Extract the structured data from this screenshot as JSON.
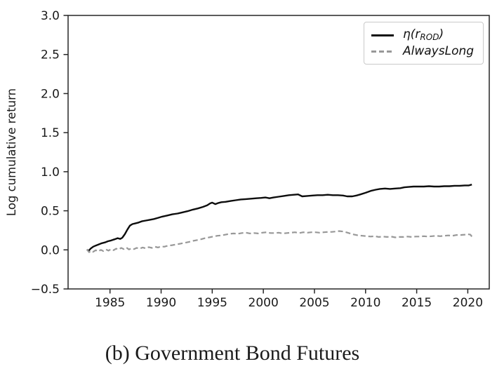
{
  "figure": {
    "caption": "(b) Government Bond Futures"
  },
  "legend": {
    "entries": [
      {
        "prefix": "η(r",
        "sub": "ROD",
        "suffix": ")"
      },
      {
        "label": "AlwaysLong"
      }
    ]
  },
  "chart_data": {
    "type": "line",
    "title": "",
    "xlabel": "",
    "ylabel": "Log cumulative return",
    "xlim": [
      1980.9,
      2022.1
    ],
    "ylim": [
      -0.5,
      3.0
    ],
    "grid": false,
    "legend_position": "upper right",
    "axis_color": "#262626",
    "tick_label_color": "#1a1a1a",
    "x_ticks": [
      {
        "value": 1985,
        "label": "1985"
      },
      {
        "value": 1990,
        "label": "1990"
      },
      {
        "value": 1995,
        "label": "1995"
      },
      {
        "value": 2000,
        "label": "2000"
      },
      {
        "value": 2005,
        "label": "2005"
      },
      {
        "value": 2010,
        "label": "2010"
      },
      {
        "value": 2015,
        "label": "2015"
      },
      {
        "value": 2020,
        "label": "2020"
      }
    ],
    "y_ticks": [
      {
        "value": -0.5,
        "label": "−0.5"
      },
      {
        "value": 0.0,
        "label": "0.0"
      },
      {
        "value": 0.5,
        "label": "0.5"
      },
      {
        "value": 1.0,
        "label": "1.0"
      },
      {
        "value": 1.5,
        "label": "1.5"
      },
      {
        "value": 2.0,
        "label": "2.0"
      },
      {
        "value": 2.5,
        "label": "2.5"
      },
      {
        "value": 3.0,
        "label": "3.0"
      }
    ],
    "series": [
      {
        "name": "η(r_ROD)",
        "color": "#0d0d0d",
        "style": "solid",
        "line_width": 2.4,
        "points": [
          [
            1982.75,
            0.005
          ],
          [
            1982.9,
            -0.015
          ],
          [
            1983.1,
            0.015
          ],
          [
            1983.35,
            0.04
          ],
          [
            1983.6,
            0.055
          ],
          [
            1983.9,
            0.07
          ],
          [
            1984.2,
            0.085
          ],
          [
            1984.5,
            0.095
          ],
          [
            1984.8,
            0.11
          ],
          [
            1985.1,
            0.12
          ],
          [
            1985.45,
            0.135
          ],
          [
            1985.75,
            0.15
          ],
          [
            1986.0,
            0.14
          ],
          [
            1986.2,
            0.155
          ],
          [
            1986.45,
            0.2
          ],
          [
            1986.7,
            0.26
          ],
          [
            1986.95,
            0.31
          ],
          [
            1987.2,
            0.33
          ],
          [
            1987.5,
            0.34
          ],
          [
            1987.8,
            0.35
          ],
          [
            1988.1,
            0.365
          ],
          [
            1988.5,
            0.375
          ],
          [
            1988.9,
            0.385
          ],
          [
            1989.3,
            0.395
          ],
          [
            1989.7,
            0.41
          ],
          [
            1990.1,
            0.425
          ],
          [
            1990.6,
            0.44
          ],
          [
            1991.1,
            0.455
          ],
          [
            1991.6,
            0.465
          ],
          [
            1992.1,
            0.48
          ],
          [
            1992.6,
            0.495
          ],
          [
            1993.1,
            0.515
          ],
          [
            1993.6,
            0.53
          ],
          [
            1994.1,
            0.55
          ],
          [
            1994.5,
            0.57
          ],
          [
            1994.8,
            0.595
          ],
          [
            1995.0,
            0.605
          ],
          [
            1995.3,
            0.585
          ],
          [
            1995.6,
            0.6
          ],
          [
            1995.9,
            0.61
          ],
          [
            1996.3,
            0.615
          ],
          [
            1996.8,
            0.625
          ],
          [
            1997.3,
            0.635
          ],
          [
            1997.8,
            0.645
          ],
          [
            1998.3,
            0.65
          ],
          [
            1998.8,
            0.655
          ],
          [
            1999.3,
            0.66
          ],
          [
            1999.8,
            0.665
          ],
          [
            2000.2,
            0.67
          ],
          [
            2000.6,
            0.66
          ],
          [
            2001.0,
            0.67
          ],
          [
            2001.5,
            0.68
          ],
          [
            2002.0,
            0.69
          ],
          [
            2002.5,
            0.7
          ],
          [
            2003.0,
            0.705
          ],
          [
            2003.4,
            0.71
          ],
          [
            2003.8,
            0.685
          ],
          [
            2004.3,
            0.69
          ],
          [
            2004.8,
            0.695
          ],
          [
            2005.3,
            0.7
          ],
          [
            2005.8,
            0.7
          ],
          [
            2006.3,
            0.705
          ],
          [
            2006.8,
            0.7
          ],
          [
            2007.3,
            0.7
          ],
          [
            2007.8,
            0.695
          ],
          [
            2008.2,
            0.685
          ],
          [
            2008.7,
            0.685
          ],
          [
            2009.1,
            0.695
          ],
          [
            2009.5,
            0.71
          ],
          [
            2010.0,
            0.73
          ],
          [
            2010.5,
            0.755
          ],
          [
            2011.0,
            0.77
          ],
          [
            2011.4,
            0.78
          ],
          [
            2011.9,
            0.785
          ],
          [
            2012.4,
            0.78
          ],
          [
            2012.9,
            0.785
          ],
          [
            2013.4,
            0.79
          ],
          [
            2013.8,
            0.8
          ],
          [
            2014.2,
            0.805
          ],
          [
            2014.7,
            0.81
          ],
          [
            2015.2,
            0.81
          ],
          [
            2015.7,
            0.81
          ],
          [
            2016.2,
            0.815
          ],
          [
            2016.7,
            0.81
          ],
          [
            2017.2,
            0.81
          ],
          [
            2017.7,
            0.815
          ],
          [
            2018.2,
            0.815
          ],
          [
            2018.7,
            0.82
          ],
          [
            2019.2,
            0.82
          ],
          [
            2019.7,
            0.825
          ],
          [
            2020.1,
            0.825
          ],
          [
            2020.4,
            0.835
          ]
        ]
      },
      {
        "name": "AlwaysLong",
        "color": "#989898",
        "style": "dashed",
        "line_width": 2.2,
        "points": [
          [
            1982.75,
            0.005
          ],
          [
            1982.95,
            -0.03
          ],
          [
            1983.15,
            -0.01
          ],
          [
            1983.35,
            -0.025
          ],
          [
            1983.6,
            -0.005
          ],
          [
            1983.85,
            -0.02
          ],
          [
            1984.1,
            0.0
          ],
          [
            1984.35,
            -0.015
          ],
          [
            1984.6,
            0.005
          ],
          [
            1984.85,
            -0.01
          ],
          [
            1985.1,
            0.01
          ],
          [
            1985.35,
            -0.005
          ],
          [
            1985.6,
            0.015
          ],
          [
            1985.85,
            0.005
          ],
          [
            1986.1,
            0.025
          ],
          [
            1986.35,
            0.01
          ],
          [
            1986.6,
            0.03
          ],
          [
            1986.85,
            0.005
          ],
          [
            1987.1,
            0.02
          ],
          [
            1987.35,
            0.01
          ],
          [
            1987.6,
            0.025
          ],
          [
            1987.9,
            0.015
          ],
          [
            1988.2,
            0.03
          ],
          [
            1988.5,
            0.02
          ],
          [
            1988.8,
            0.035
          ],
          [
            1989.1,
            0.025
          ],
          [
            1989.4,
            0.04
          ],
          [
            1989.7,
            0.03
          ],
          [
            1990.0,
            0.045
          ],
          [
            1990.3,
            0.04
          ],
          [
            1990.7,
            0.055
          ],
          [
            1991.1,
            0.06
          ],
          [
            1991.5,
            0.07
          ],
          [
            1991.9,
            0.08
          ],
          [
            1992.3,
            0.09
          ],
          [
            1992.7,
            0.1
          ],
          [
            1993.1,
            0.115
          ],
          [
            1993.5,
            0.125
          ],
          [
            1993.9,
            0.135
          ],
          [
            1994.3,
            0.15
          ],
          [
            1994.7,
            0.16
          ],
          [
            1995.1,
            0.17
          ],
          [
            1995.5,
            0.18
          ],
          [
            1995.9,
            0.185
          ],
          [
            1996.3,
            0.195
          ],
          [
            1996.7,
            0.205
          ],
          [
            1997.1,
            0.21
          ],
          [
            1997.5,
            0.205
          ],
          [
            1997.9,
            0.215
          ],
          [
            1998.3,
            0.22
          ],
          [
            1998.7,
            0.21
          ],
          [
            1999.1,
            0.215
          ],
          [
            1999.5,
            0.21
          ],
          [
            1999.9,
            0.22
          ],
          [
            2000.3,
            0.225
          ],
          [
            2000.7,
            0.215
          ],
          [
            2001.1,
            0.215
          ],
          [
            2001.5,
            0.22
          ],
          [
            2001.9,
            0.21
          ],
          [
            2002.3,
            0.215
          ],
          [
            2002.7,
            0.22
          ],
          [
            2003.1,
            0.225
          ],
          [
            2003.5,
            0.215
          ],
          [
            2003.9,
            0.225
          ],
          [
            2004.3,
            0.22
          ],
          [
            2004.7,
            0.225
          ],
          [
            2005.1,
            0.225
          ],
          [
            2005.5,
            0.22
          ],
          [
            2005.9,
            0.225
          ],
          [
            2006.3,
            0.23
          ],
          [
            2006.7,
            0.23
          ],
          [
            2007.1,
            0.235
          ],
          [
            2007.4,
            0.24
          ],
          [
            2007.8,
            0.235
          ],
          [
            2008.1,
            0.225
          ],
          [
            2008.5,
            0.21
          ],
          [
            2008.9,
            0.195
          ],
          [
            2009.3,
            0.185
          ],
          [
            2009.7,
            0.18
          ],
          [
            2010.1,
            0.175
          ],
          [
            2010.5,
            0.17
          ],
          [
            2010.9,
            0.175
          ],
          [
            2011.3,
            0.165
          ],
          [
            2011.7,
            0.17
          ],
          [
            2012.1,
            0.165
          ],
          [
            2012.5,
            0.17
          ],
          [
            2012.9,
            0.16
          ],
          [
            2013.3,
            0.165
          ],
          [
            2013.7,
            0.165
          ],
          [
            2014.1,
            0.17
          ],
          [
            2014.5,
            0.165
          ],
          [
            2014.9,
            0.17
          ],
          [
            2015.3,
            0.17
          ],
          [
            2015.7,
            0.175
          ],
          [
            2016.1,
            0.17
          ],
          [
            2016.5,
            0.175
          ],
          [
            2016.9,
            0.18
          ],
          [
            2017.3,
            0.175
          ],
          [
            2017.7,
            0.18
          ],
          [
            2018.1,
            0.185
          ],
          [
            2018.5,
            0.18
          ],
          [
            2018.9,
            0.19
          ],
          [
            2019.3,
            0.19
          ],
          [
            2019.7,
            0.195
          ],
          [
            2020.0,
            0.2
          ],
          [
            2020.25,
            0.195
          ],
          [
            2020.4,
            0.17
          ]
        ]
      }
    ]
  }
}
